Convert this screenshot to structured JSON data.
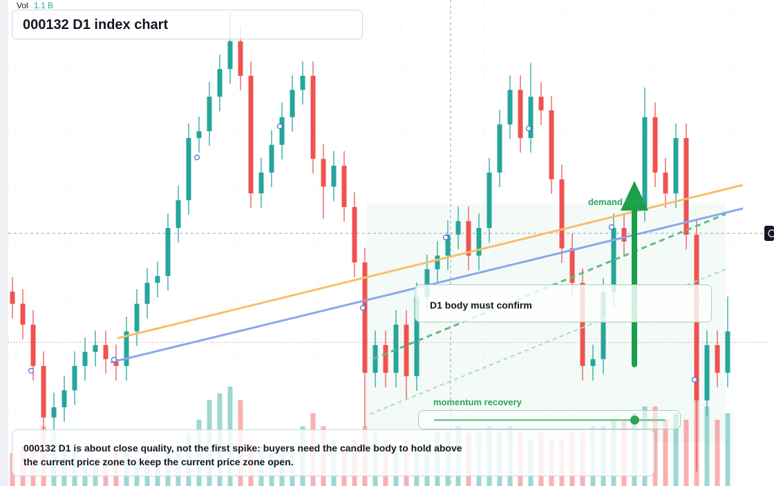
{
  "chart_data": {
    "type": "candlestick",
    "title": "000132 D1 index chart",
    "volume_label": "Vol",
    "volume_value": "1.1 B",
    "annotations": {
      "zone": "demand zone",
      "confirm": "D1 body must confirm",
      "momentum": "momentum recovery",
      "note": "000132 D1 is about close quality, not the first spike: buyers need the candle body to hold above the current price zone to keep the current price zone open."
    },
    "up_color": "#26a69a",
    "down_color": "#ef5350",
    "ylim": [
      0,
      100
    ],
    "vol_ylim": [
      0,
      6
    ],
    "open": [
      40.0,
      37.5,
      33.2,
      24.7,
      14.1,
      16.2,
      19.7,
      24.7,
      27.6,
      29.0,
      26.1,
      24.7,
      31.8,
      37.5,
      41.8,
      43.2,
      53.1,
      58.8,
      71.6,
      73.0,
      80.1,
      85.8,
      91.5,
      84.4,
      60.2,
      64.5,
      70.2,
      75.9,
      81.5,
      84.4,
      67.3,
      61.6,
      65.9,
      57.4,
      46.0,
      23.3,
      29.0,
      23.3,
      33.2,
      22.6,
      38.9,
      44.6,
      47.4,
      51.7,
      54.5,
      47.4,
      53.1,
      64.5,
      74.4,
      81.5,
      71.6,
      80.1,
      77.3,
      63.1,
      48.9,
      41.8,
      24.7,
      26.1,
      39.8,
      53.1,
      50.3,
      57.4,
      75.9,
      64.5,
      60.2,
      71.6,
      51.7,
      17.6,
      29.0,
      23.3
    ],
    "high": [
      43.0,
      40.5,
      36.2,
      27.7,
      19.2,
      22.7,
      27.7,
      30.6,
      32.0,
      32.0,
      29.1,
      34.8,
      40.5,
      44.8,
      46.2,
      56.1,
      61.8,
      74.6,
      76.0,
      83.1,
      88.8,
      97.5,
      94.5,
      87.4,
      67.5,
      73.2,
      78.9,
      84.5,
      87.4,
      87.4,
      70.3,
      68.9,
      68.9,
      60.4,
      49.0,
      32.0,
      32.0,
      36.2,
      36.2,
      41.9,
      47.6,
      50.4,
      54.7,
      57.5,
      57.5,
      56.1,
      67.5,
      77.4,
      84.5,
      84.5,
      87.0,
      83.1,
      80.3,
      66.1,
      51.9,
      44.8,
      29.1,
      42.8,
      56.1,
      56.1,
      60.4,
      82.0,
      78.9,
      67.5,
      74.6,
      74.6,
      54.7,
      32.0,
      32.0,
      39.0
    ],
    "low": [
      34.5,
      30.2,
      21.7,
      11.1,
      11.1,
      13.2,
      16.7,
      21.7,
      24.6,
      23.1,
      21.7,
      21.7,
      28.8,
      34.5,
      38.8,
      40.2,
      50.1,
      55.8,
      68.6,
      70.0,
      77.1,
      82.8,
      81.4,
      57.2,
      57.2,
      61.5,
      67.2,
      72.9,
      78.5,
      64.3,
      55.0,
      58.6,
      54.4,
      43.0,
      12.0,
      20.3,
      20.3,
      20.3,
      18.0,
      19.6,
      35.9,
      41.6,
      44.4,
      48.7,
      44.4,
      44.4,
      50.1,
      61.5,
      71.4,
      68.6,
      68.6,
      74.3,
      60.1,
      45.9,
      38.8,
      21.7,
      21.7,
      23.1,
      36.8,
      47.3,
      47.3,
      54.4,
      61.5,
      57.2,
      57.2,
      48.7,
      3.0,
      14.6,
      20.3,
      20.3
    ],
    "close": [
      37.5,
      33.2,
      24.7,
      14.1,
      16.2,
      19.7,
      24.7,
      27.6,
      29.0,
      26.1,
      24.7,
      31.8,
      37.5,
      41.8,
      43.2,
      53.1,
      58.8,
      71.6,
      73.0,
      80.1,
      85.8,
      91.5,
      84.4,
      60.2,
      64.5,
      70.2,
      75.9,
      81.5,
      84.4,
      67.3,
      61.6,
      65.9,
      57.4,
      46.0,
      23.3,
      29.0,
      23.3,
      33.2,
      22.6,
      38.9,
      44.6,
      47.4,
      51.7,
      54.5,
      47.4,
      53.1,
      64.5,
      74.4,
      81.5,
      71.6,
      80.1,
      77.3,
      63.1,
      48.9,
      41.8,
      24.7,
      26.1,
      39.8,
      53.1,
      50.3,
      57.4,
      75.9,
      64.5,
      60.2,
      71.6,
      51.7,
      17.6,
      29.0,
      23.3,
      31.8
    ],
    "volume": [
      0.5,
      0.6,
      0.7,
      0.9,
      0.8,
      0.6,
      0.5,
      0.4,
      0.4,
      0.4,
      0.5,
      0.5,
      0.4,
      0.4,
      0.4,
      0.5,
      0.6,
      0.8,
      1.0,
      1.3,
      1.4,
      1.5,
      1.3,
      0.7,
      0.6,
      0.5,
      0.5,
      0.6,
      0.9,
      1.1,
      0.9,
      0.7,
      0.6,
      0.7,
      0.9,
      0.8,
      0.7,
      0.6,
      0.7,
      0.6,
      0.7,
      0.8,
      0.8,
      0.9,
      0.8,
      0.8,
      0.9,
      0.8,
      0.9,
      0.8,
      0.7,
      0.8,
      0.7,
      0.7,
      0.8,
      0.8,
      0.9,
      0.9,
      1.0,
      1.0,
      1.1,
      1.2,
      1.2,
      1.0,
      1.1,
      1.0,
      1.3,
      1.2,
      1.0,
      1.1
    ]
  }
}
